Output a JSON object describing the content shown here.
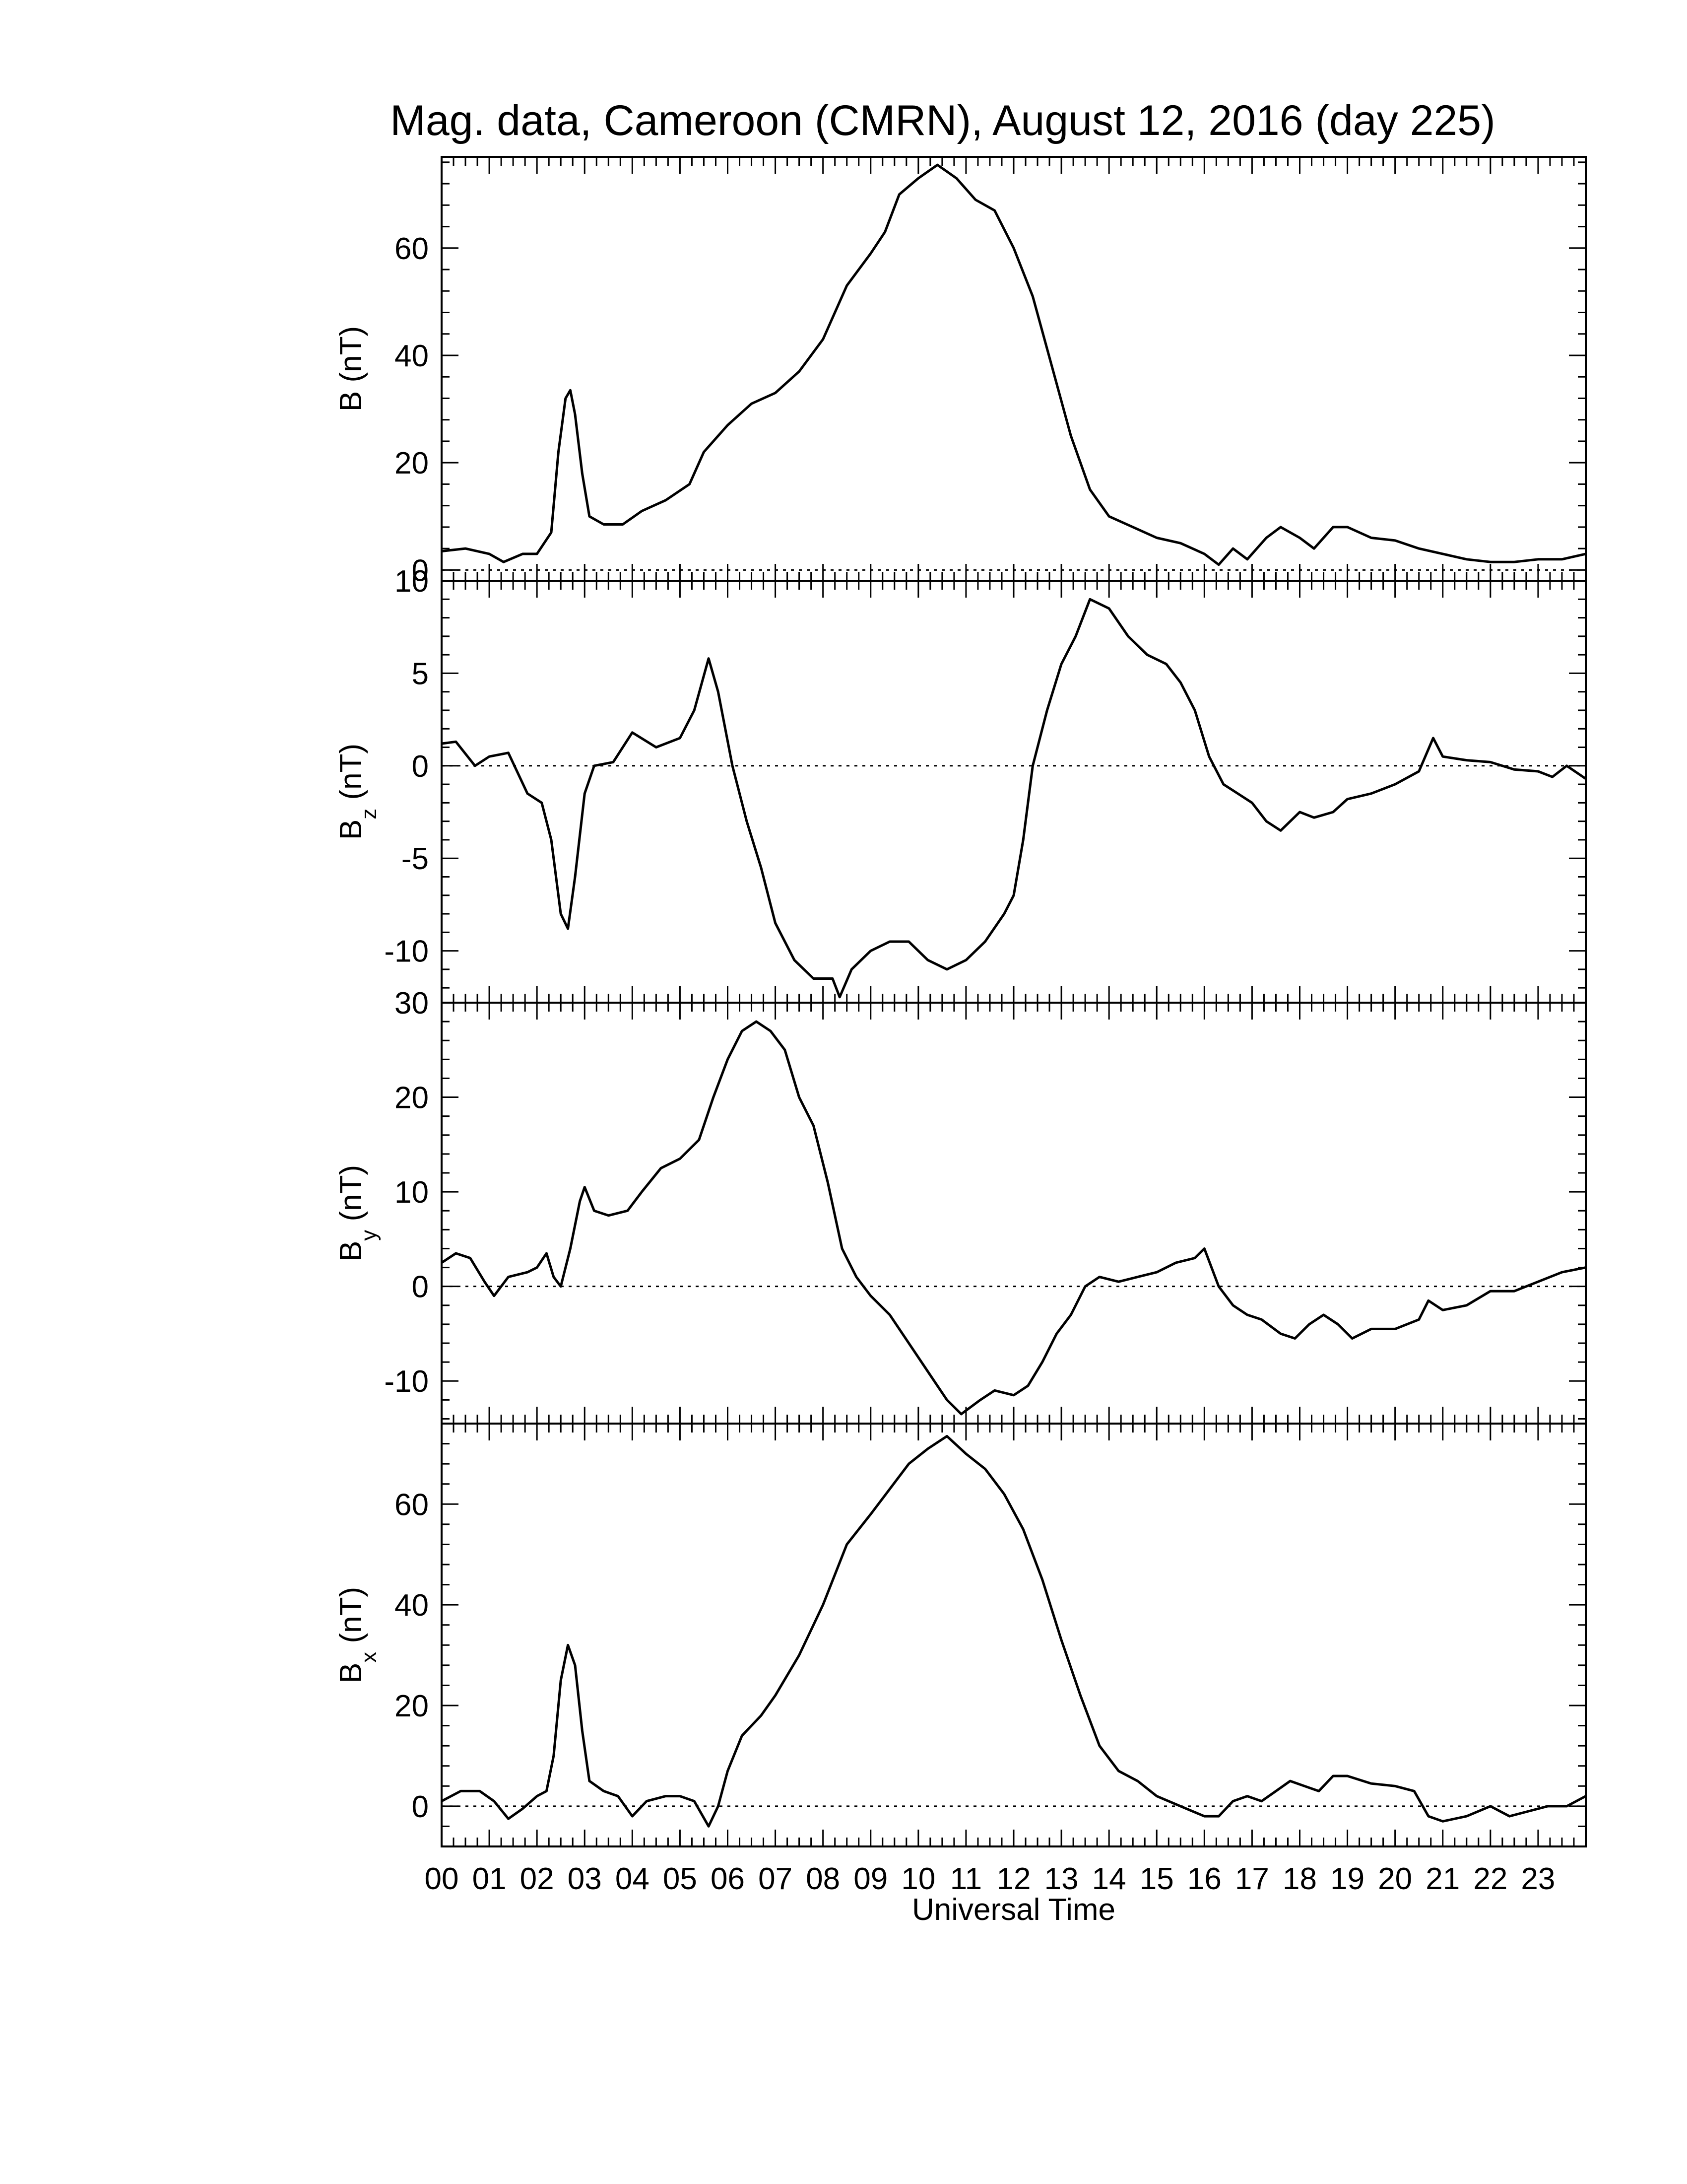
{
  "chart_data": {
    "type": "line",
    "title": "Mag. data, Cameroon (CMRN), August 12, 2016 (day 225)",
    "xlabel": "Universal Time",
    "x_unit": "hours UT",
    "xlim": [
      0,
      24
    ],
    "x_tick_labels": [
      "00",
      "01",
      "02",
      "03",
      "04",
      "05",
      "06",
      "07",
      "08",
      "09",
      "10",
      "11",
      "12",
      "13",
      "14",
      "15",
      "16",
      "17",
      "18",
      "19",
      "20",
      "21",
      "22",
      "23"
    ],
    "zero_line": "dotted",
    "panels": [
      {
        "key": "B",
        "ylabel": "B (nT)",
        "ylabel_main": "B",
        "ylabel_sub": "",
        "ylabel_unit": " (nT)",
        "ylim": [
          -2,
          77
        ],
        "yticks": [
          0,
          20,
          40,
          60
        ],
        "ytick_labels": [
          "0",
          "20",
          "40",
          "60"
        ],
        "points": [
          [
            0,
            3.5
          ],
          [
            0.5,
            4
          ],
          [
            1,
            3
          ],
          [
            1.3,
            1.5
          ],
          [
            1.7,
            3
          ],
          [
            2,
            3
          ],
          [
            2.3,
            7
          ],
          [
            2.45,
            22
          ],
          [
            2.6,
            32
          ],
          [
            2.7,
            33.5
          ],
          [
            2.8,
            29
          ],
          [
            2.95,
            18
          ],
          [
            3.1,
            10
          ],
          [
            3.4,
            8.5
          ],
          [
            3.8,
            8.5
          ],
          [
            4.2,
            11
          ],
          [
            4.7,
            13
          ],
          [
            5.2,
            16
          ],
          [
            5.5,
            22
          ],
          [
            6,
            27
          ],
          [
            6.5,
            31
          ],
          [
            7,
            33
          ],
          [
            7.5,
            37
          ],
          [
            8,
            43
          ],
          [
            8.5,
            53
          ],
          [
            9,
            59
          ],
          [
            9.3,
            63
          ],
          [
            9.6,
            70
          ],
          [
            10,
            73
          ],
          [
            10.4,
            75.5
          ],
          [
            10.8,
            73
          ],
          [
            11.2,
            69
          ],
          [
            11.6,
            67
          ],
          [
            12,
            60
          ],
          [
            12.4,
            51
          ],
          [
            12.8,
            38
          ],
          [
            13.2,
            25
          ],
          [
            13.6,
            15
          ],
          [
            14,
            10
          ],
          [
            14.5,
            8
          ],
          [
            15,
            6
          ],
          [
            15.5,
            5
          ],
          [
            16,
            3
          ],
          [
            16.3,
            1
          ],
          [
            16.6,
            4
          ],
          [
            16.9,
            2
          ],
          [
            17.3,
            6
          ],
          [
            17.6,
            8
          ],
          [
            18,
            6
          ],
          [
            18.3,
            4
          ],
          [
            18.7,
            8
          ],
          [
            19,
            8
          ],
          [
            19.5,
            6
          ],
          [
            20,
            5.5
          ],
          [
            20.5,
            4
          ],
          [
            21,
            3
          ],
          [
            21.5,
            2
          ],
          [
            22,
            1.5
          ],
          [
            22.5,
            1.5
          ],
          [
            23,
            2
          ],
          [
            23.5,
            2
          ],
          [
            24,
            3
          ]
        ]
      },
      {
        "key": "Bz",
        "ylabel": "Bz (nT)",
        "ylabel_main": "B",
        "ylabel_sub": "z",
        "ylabel_unit": " (nT)",
        "ylim": [
          -12.8,
          10
        ],
        "yticks": [
          -10,
          -5,
          0,
          5,
          10
        ],
        "ytick_labels": [
          "-10",
          "-5",
          "0",
          "5",
          "10"
        ],
        "points": [
          [
            0,
            1.2
          ],
          [
            0.3,
            1.3
          ],
          [
            0.7,
            0
          ],
          [
            1,
            0.5
          ],
          [
            1.4,
            0.7
          ],
          [
            1.8,
            -1.5
          ],
          [
            2.1,
            -2
          ],
          [
            2.3,
            -4
          ],
          [
            2.5,
            -8
          ],
          [
            2.65,
            -8.8
          ],
          [
            2.8,
            -6
          ],
          [
            3,
            -1.5
          ],
          [
            3.2,
            0
          ],
          [
            3.6,
            0.2
          ],
          [
            4,
            1.8
          ],
          [
            4.5,
            1
          ],
          [
            5,
            1.5
          ],
          [
            5.3,
            3
          ],
          [
            5.6,
            5.8
          ],
          [
            5.8,
            4
          ],
          [
            6.1,
            0
          ],
          [
            6.4,
            -3
          ],
          [
            6.7,
            -5.5
          ],
          [
            7,
            -8.5
          ],
          [
            7.4,
            -10.5
          ],
          [
            7.8,
            -11.5
          ],
          [
            8.2,
            -11.5
          ],
          [
            8.35,
            -12.5
          ],
          [
            8.6,
            -11
          ],
          [
            9,
            -10
          ],
          [
            9.4,
            -9.5
          ],
          [
            9.8,
            -9.5
          ],
          [
            10.2,
            -10.5
          ],
          [
            10.6,
            -11
          ],
          [
            11,
            -10.5
          ],
          [
            11.4,
            -9.5
          ],
          [
            11.8,
            -8
          ],
          [
            12,
            -7
          ],
          [
            12.2,
            -4
          ],
          [
            12.4,
            0
          ],
          [
            12.7,
            3
          ],
          [
            13,
            5.5
          ],
          [
            13.3,
            7
          ],
          [
            13.6,
            9
          ],
          [
            14,
            8.5
          ],
          [
            14.4,
            7
          ],
          [
            14.8,
            6
          ],
          [
            15.2,
            5.5
          ],
          [
            15.5,
            4.5
          ],
          [
            15.8,
            3
          ],
          [
            16.1,
            0.5
          ],
          [
            16.4,
            -1
          ],
          [
            16.7,
            -1.5
          ],
          [
            17,
            -2
          ],
          [
            17.3,
            -3
          ],
          [
            17.6,
            -3.5
          ],
          [
            18,
            -2.5
          ],
          [
            18.3,
            -2.8
          ],
          [
            18.7,
            -2.5
          ],
          [
            19,
            -1.8
          ],
          [
            19.5,
            -1.5
          ],
          [
            20,
            -1
          ],
          [
            20.5,
            -0.3
          ],
          [
            20.8,
            1.5
          ],
          [
            21,
            0.5
          ],
          [
            21.5,
            0.3
          ],
          [
            22,
            0.2
          ],
          [
            22.5,
            -0.2
          ],
          [
            23,
            -0.3
          ],
          [
            23.3,
            -0.6
          ],
          [
            23.6,
            0
          ],
          [
            24,
            -0.7
          ]
        ]
      },
      {
        "key": "By",
        "ylabel": "By (nT)",
        "ylabel_main": "B",
        "ylabel_sub": "y",
        "ylabel_unit": " (nT)",
        "ylim": [
          -14.5,
          30
        ],
        "yticks": [
          -10,
          0,
          10,
          20,
          30
        ],
        "ytick_labels": [
          "-10",
          "0",
          "10",
          "20",
          "30"
        ],
        "points": [
          [
            0,
            2.5
          ],
          [
            0.3,
            3.5
          ],
          [
            0.6,
            3
          ],
          [
            0.9,
            0.5
          ],
          [
            1.1,
            -1
          ],
          [
            1.4,
            1
          ],
          [
            1.8,
            1.5
          ],
          [
            2,
            2
          ],
          [
            2.2,
            3.5
          ],
          [
            2.35,
            1
          ],
          [
            2.5,
            0
          ],
          [
            2.7,
            4
          ],
          [
            2.9,
            9
          ],
          [
            3,
            10.5
          ],
          [
            3.2,
            8
          ],
          [
            3.5,
            7.5
          ],
          [
            3.9,
            8
          ],
          [
            4.2,
            10
          ],
          [
            4.6,
            12.5
          ],
          [
            5,
            13.5
          ],
          [
            5.4,
            15.5
          ],
          [
            5.7,
            20
          ],
          [
            6,
            24
          ],
          [
            6.3,
            27
          ],
          [
            6.6,
            28
          ],
          [
            6.9,
            27
          ],
          [
            7.2,
            25
          ],
          [
            7.5,
            20
          ],
          [
            7.8,
            17
          ],
          [
            8.1,
            11
          ],
          [
            8.4,
            4
          ],
          [
            8.7,
            1
          ],
          [
            9,
            -1
          ],
          [
            9.4,
            -3
          ],
          [
            9.8,
            -6
          ],
          [
            10.2,
            -9
          ],
          [
            10.6,
            -12
          ],
          [
            10.9,
            -13.5
          ],
          [
            11.3,
            -12
          ],
          [
            11.6,
            -11
          ],
          [
            12,
            -11.5
          ],
          [
            12.3,
            -10.5
          ],
          [
            12.6,
            -8
          ],
          [
            12.9,
            -5
          ],
          [
            13.2,
            -3
          ],
          [
            13.5,
            0
          ],
          [
            13.8,
            1
          ],
          [
            14.2,
            0.5
          ],
          [
            14.6,
            1
          ],
          [
            15,
            1.5
          ],
          [
            15.4,
            2.5
          ],
          [
            15.8,
            3
          ],
          [
            16,
            4
          ],
          [
            16.3,
            0
          ],
          [
            16.6,
            -2
          ],
          [
            16.9,
            -3
          ],
          [
            17.2,
            -3.5
          ],
          [
            17.6,
            -5
          ],
          [
            17.9,
            -5.5
          ],
          [
            18.2,
            -4
          ],
          [
            18.5,
            -3
          ],
          [
            18.8,
            -4
          ],
          [
            19.1,
            -5.5
          ],
          [
            19.5,
            -4.5
          ],
          [
            20,
            -4.5
          ],
          [
            20.5,
            -3.5
          ],
          [
            20.7,
            -1.5
          ],
          [
            21,
            -2.5
          ],
          [
            21.5,
            -2
          ],
          [
            22,
            -0.5
          ],
          [
            22.5,
            -0.5
          ],
          [
            23,
            0.5
          ],
          [
            23.5,
            1.5
          ],
          [
            24,
            2
          ]
        ]
      },
      {
        "key": "Bx",
        "ylabel": "Bx (nT)",
        "ylabel_main": "B",
        "ylabel_sub": "x",
        "ylabel_unit": " (nT)",
        "ylim": [
          -8,
          76
        ],
        "yticks": [
          0,
          20,
          40,
          60
        ],
        "ytick_labels": [
          "0",
          "20",
          "40",
          "60"
        ],
        "points": [
          [
            0,
            1
          ],
          [
            0.4,
            3
          ],
          [
            0.8,
            3
          ],
          [
            1.1,
            1
          ],
          [
            1.4,
            -2.5
          ],
          [
            1.7,
            -0.5
          ],
          [
            2,
            2
          ],
          [
            2.2,
            3
          ],
          [
            2.35,
            10
          ],
          [
            2.5,
            25
          ],
          [
            2.65,
            32
          ],
          [
            2.8,
            28
          ],
          [
            2.95,
            15
          ],
          [
            3.1,
            5
          ],
          [
            3.4,
            3
          ],
          [
            3.7,
            2
          ],
          [
            4,
            -2
          ],
          [
            4.3,
            1
          ],
          [
            4.7,
            2
          ],
          [
            5,
            2
          ],
          [
            5.3,
            1
          ],
          [
            5.6,
            -4
          ],
          [
            5.8,
            0
          ],
          [
            6,
            7
          ],
          [
            6.3,
            14
          ],
          [
            6.7,
            18
          ],
          [
            7,
            22
          ],
          [
            7.5,
            30
          ],
          [
            8,
            40
          ],
          [
            8.5,
            52
          ],
          [
            9,
            58
          ],
          [
            9.4,
            63
          ],
          [
            9.8,
            68
          ],
          [
            10.2,
            71
          ],
          [
            10.6,
            73.5
          ],
          [
            11,
            70
          ],
          [
            11.4,
            67
          ],
          [
            11.8,
            62
          ],
          [
            12.2,
            55
          ],
          [
            12.6,
            45
          ],
          [
            13,
            33
          ],
          [
            13.4,
            22
          ],
          [
            13.8,
            12
          ],
          [
            14.2,
            7
          ],
          [
            14.6,
            5
          ],
          [
            15,
            2
          ],
          [
            15.5,
            0
          ],
          [
            16,
            -2
          ],
          [
            16.3,
            -2
          ],
          [
            16.6,
            1
          ],
          [
            16.9,
            2
          ],
          [
            17.2,
            1
          ],
          [
            17.5,
            3
          ],
          [
            17.8,
            5
          ],
          [
            18.1,
            4
          ],
          [
            18.4,
            3
          ],
          [
            18.7,
            6
          ],
          [
            19,
            6
          ],
          [
            19.5,
            4.5
          ],
          [
            20,
            4
          ],
          [
            20.4,
            3
          ],
          [
            20.7,
            -2
          ],
          [
            21,
            -3
          ],
          [
            21.5,
            -2
          ],
          [
            22,
            0
          ],
          [
            22.4,
            -2
          ],
          [
            22.8,
            -1
          ],
          [
            23.2,
            0
          ],
          [
            23.6,
            0
          ],
          [
            24,
            2
          ]
        ]
      }
    ]
  }
}
